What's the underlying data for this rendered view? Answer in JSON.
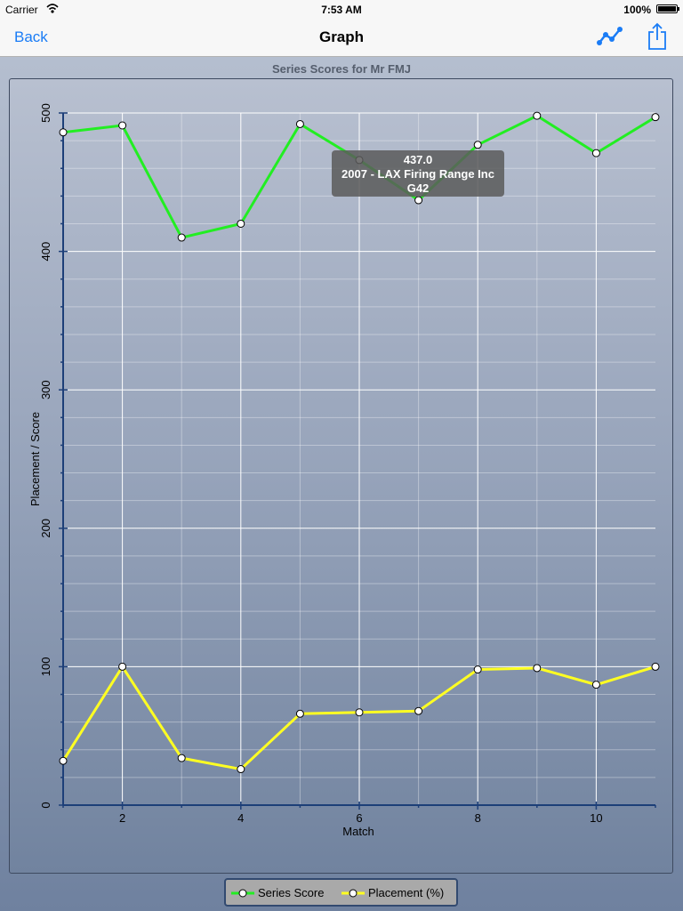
{
  "status_bar": {
    "carrier": "Carrier",
    "time": "7:53 AM",
    "battery": "100%"
  },
  "nav": {
    "back_label": "Back",
    "title": "Graph"
  },
  "tooltip": {
    "line1": "437.0",
    "line2": "2007 - LAX Firing Range Inc",
    "line3": "G42"
  },
  "colors": {
    "series_score": "#22ee22",
    "placement": "#ffff22",
    "accent": "#1a7cf6"
  },
  "chart_data": {
    "type": "line",
    "title": "Series Scores for Mr FMJ",
    "xlabel": "Match",
    "ylabel": "Placement / Score",
    "xlim": [
      1,
      11
    ],
    "ylim": [
      0,
      500
    ],
    "x_ticks": [
      2,
      4,
      6,
      8,
      10
    ],
    "y_ticks": [
      0,
      100,
      200,
      300,
      400,
      500
    ],
    "grid": true,
    "legend_position": "bottom-center",
    "x": [
      1,
      2,
      3,
      4,
      5,
      6,
      7,
      8,
      9,
      10,
      11
    ],
    "series": [
      {
        "name": "Series Score",
        "color": "#22ee22",
        "values": [
          486,
          491,
          410,
          420,
          492,
          466,
          437,
          477,
          498,
          471,
          497
        ]
      },
      {
        "name": "Placement (%)",
        "color": "#ffff22",
        "values": [
          32,
          100,
          34,
          26,
          66,
          67,
          68,
          98,
          99,
          87,
          100
        ]
      }
    ]
  }
}
